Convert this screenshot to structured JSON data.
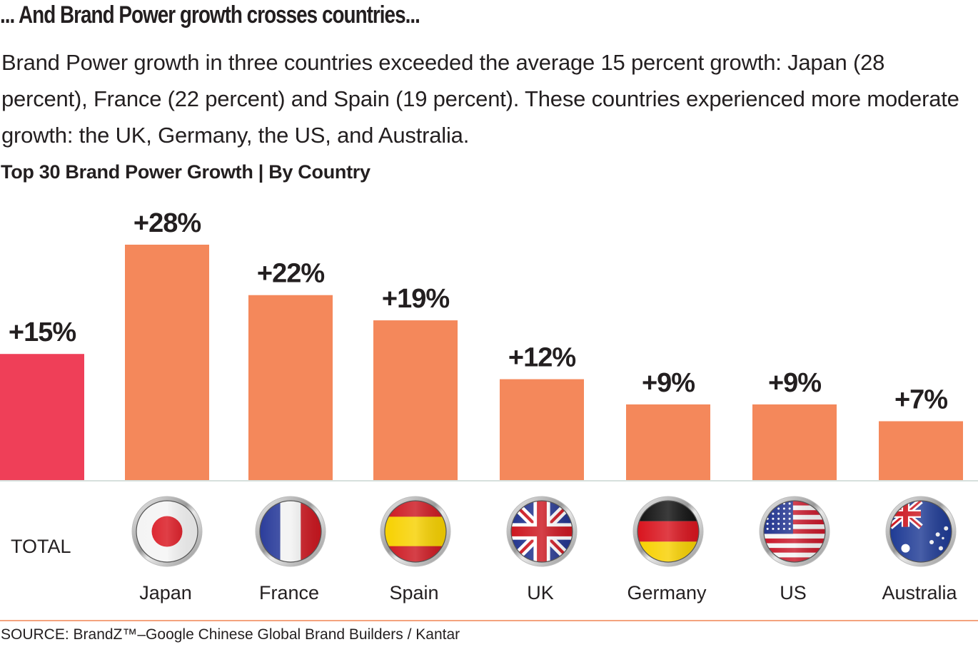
{
  "headline": "... And Brand Power growth crosses countries...",
  "intro": "Brand Power growth in three countries exceeded the average 15 percent growth: Japan (28 percent), France (22 percent) and Spain (19 percent). These countries experienced more moderate growth: the UK, Germany, the US, and Australia.",
  "source": "SOURCE: BrandZ™–Google Chinese Global Brand Builders / Kantar",
  "colors": {
    "total_bar": "#ef3f58",
    "country_bar": "#f4885b",
    "baseline": "#d6e0dd",
    "text": "#231f20",
    "rule": "#f4a37e"
  },
  "chart_data": {
    "type": "bar",
    "title": "Top 30 Brand Power Growth | By Country",
    "xlabel": "",
    "ylabel": "",
    "ylim": [
      0,
      28
    ],
    "grid": false,
    "legend": "none",
    "categories": [
      "TOTAL",
      "Japan",
      "France",
      "Spain",
      "UK",
      "Germany",
      "US",
      "Australia"
    ],
    "values": [
      15,
      28,
      22,
      19,
      12,
      9,
      9,
      7
    ],
    "data_labels": [
      "+15%",
      "+28%",
      "+22%",
      "+19%",
      "+12%",
      "+9%",
      "+9%",
      "+7%"
    ],
    "flags": [
      null,
      "japan-flag",
      "france-flag",
      "spain-flag",
      "uk-flag",
      "germany-flag",
      "us-flag",
      "australia-flag"
    ],
    "highlight": "TOTAL"
  }
}
